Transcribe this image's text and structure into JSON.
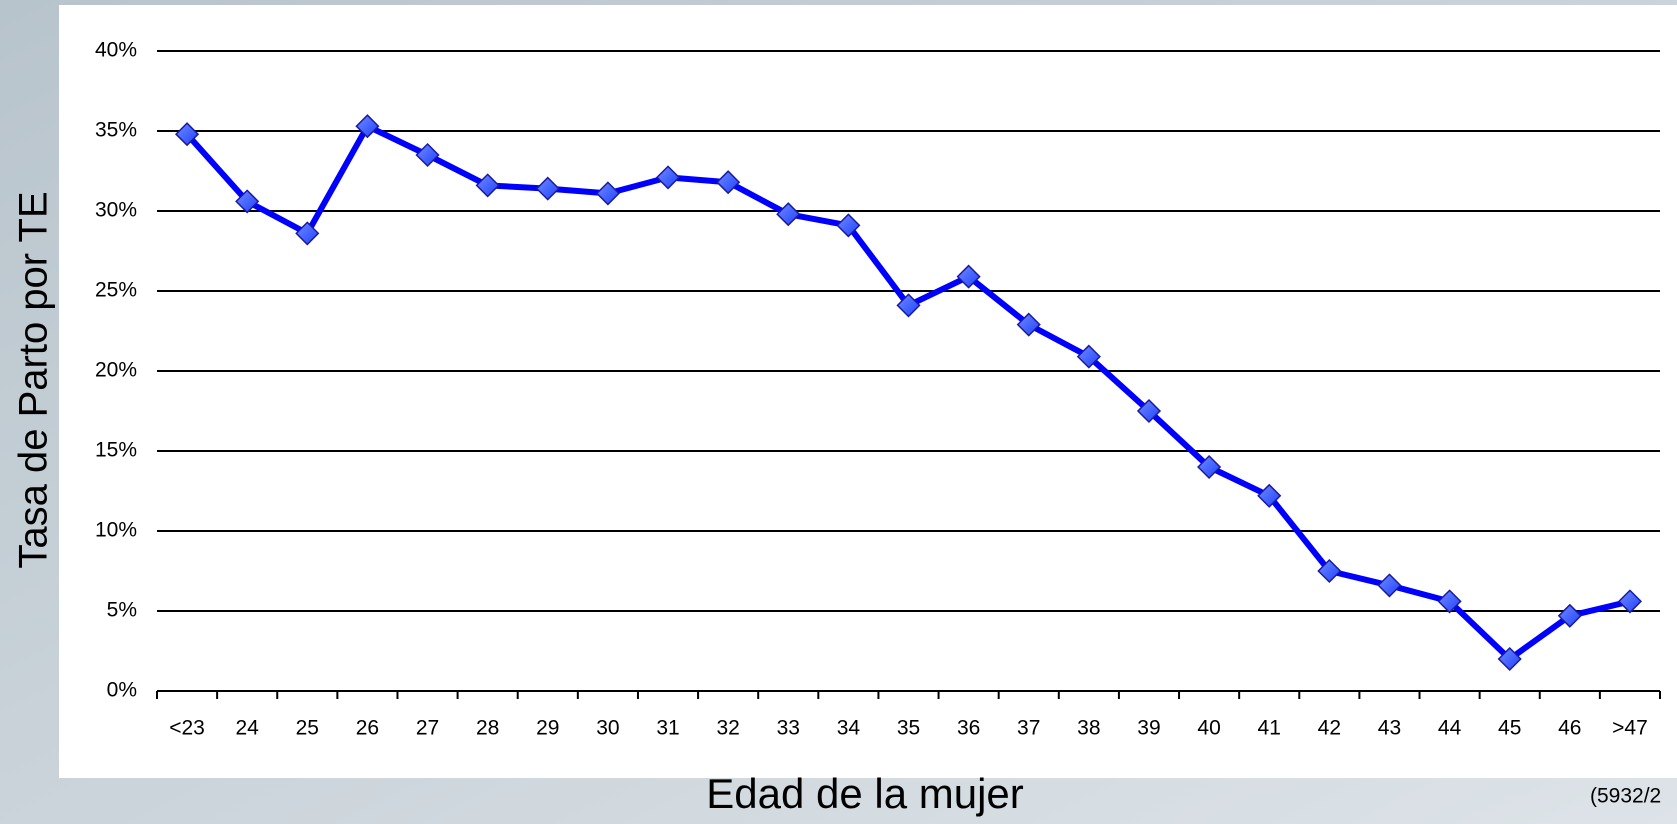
{
  "chart_data": {
    "type": "line",
    "ylabel": "Tasa de Parto por TE",
    "xlabel": "Edad de la mujer",
    "note": "(5932/2",
    "categories": [
      "<23",
      "24",
      "25",
      "26",
      "27",
      "28",
      "29",
      "30",
      "31",
      "32",
      "33",
      "34",
      "35",
      "36",
      "37",
      "38",
      "39",
      "40",
      "41",
      "42",
      "43",
      "44",
      "45",
      "46",
      ">47"
    ],
    "series": [
      {
        "color": "#0000ff",
        "values": [
          34.8,
          30.6,
          28.6,
          35.3,
          33.5,
          31.6,
          31.4,
          31.1,
          32.1,
          31.8,
          29.8,
          29.1,
          24.1,
          25.9,
          22.9,
          20.9,
          17.5,
          14.0,
          12.2,
          7.5,
          6.6,
          5.6,
          2.0,
          4.7,
          5.6
        ]
      }
    ],
    "ylim": [
      0,
      40
    ],
    "yticks": [
      {
        "value": 0,
        "label": "0%"
      },
      {
        "value": 5,
        "label": "5%"
      },
      {
        "value": 10,
        "label": "10%"
      },
      {
        "value": 15,
        "label": "15%"
      },
      {
        "value": 20,
        "label": "20%"
      },
      {
        "value": 25,
        "label": "25%"
      },
      {
        "value": 30,
        "label": "30%"
      },
      {
        "value": 35,
        "label": "35%"
      },
      {
        "value": 40,
        "label": "40%"
      }
    ],
    "grid": true
  }
}
